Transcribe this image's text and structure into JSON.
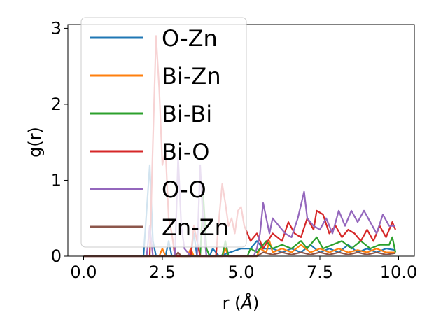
{
  "chart_data": {
    "type": "line",
    "title": "",
    "xlabel_prefix": "r (",
    "xlabel_unit": "Å",
    "xlabel_suffix": ")",
    "ylabel": "g(r)",
    "xlim": [
      -0.5,
      10.5
    ],
    "ylim": [
      0,
      3.05
    ],
    "xticks": [
      0.0,
      2.5,
      5.0,
      7.5,
      10.0
    ],
    "xtick_labels": [
      "0.0",
      "2.5",
      "5.0",
      "7.5",
      "10.0"
    ],
    "yticks": [
      0,
      1,
      2,
      3
    ],
    "ytick_labels": [
      "0",
      "1",
      "2",
      "3"
    ],
    "grid": false,
    "legend_position": "upper-left",
    "series": [
      {
        "name": "O-Zn",
        "color": "#1f77b4",
        "points": [
          [
            0,
            0
          ],
          [
            1.9,
            0
          ],
          [
            2.0,
            0.6
          ],
          [
            2.1,
            1.2
          ],
          [
            2.2,
            0.2
          ],
          [
            2.3,
            0
          ],
          [
            2.6,
            0
          ],
          [
            2.7,
            0.2
          ],
          [
            2.8,
            0
          ],
          [
            3.4,
            0
          ],
          [
            3.5,
            0.3
          ],
          [
            3.6,
            0
          ],
          [
            4.0,
            0
          ],
          [
            4.1,
            0.1
          ],
          [
            4.3,
            0
          ],
          [
            5.0,
            0.1
          ],
          [
            5.3,
            0.1
          ],
          [
            5.5,
            0.2
          ],
          [
            5.7,
            0.1
          ],
          [
            6.0,
            0.1
          ],
          [
            6.3,
            0.05
          ],
          [
            6.6,
            0.1
          ],
          [
            6.9,
            0.05
          ],
          [
            7.2,
            0.15
          ],
          [
            7.5,
            0.05
          ],
          [
            7.8,
            0.1
          ],
          [
            8.1,
            0.05
          ],
          [
            8.4,
            0.15
          ],
          [
            8.7,
            0.05
          ],
          [
            9.0,
            0.1
          ],
          [
            9.3,
            0.05
          ],
          [
            9.6,
            0.1
          ],
          [
            9.9,
            0.08
          ]
        ]
      },
      {
        "name": "Bi-Zn",
        "color": "#ff7f0e",
        "points": [
          [
            0,
            0
          ],
          [
            2.4,
            0
          ],
          [
            2.5,
            0.1
          ],
          [
            2.6,
            0
          ],
          [
            3.3,
            0
          ],
          [
            3.4,
            0.1
          ],
          [
            3.5,
            0
          ],
          [
            4.4,
            0
          ],
          [
            4.5,
            0.1
          ],
          [
            4.6,
            0
          ],
          [
            5.5,
            0
          ],
          [
            5.6,
            0.1
          ],
          [
            5.8,
            0.05
          ],
          [
            5.9,
            0.2
          ],
          [
            6.0,
            0.05
          ],
          [
            6.3,
            0.1
          ],
          [
            6.6,
            0.05
          ],
          [
            6.9,
            0.15
          ],
          [
            7.2,
            0.05
          ],
          [
            7.5,
            0.1
          ],
          [
            7.8,
            0.05
          ],
          [
            8.1,
            0.1
          ],
          [
            8.4,
            0.05
          ],
          [
            8.7,
            0.08
          ],
          [
            9.0,
            0.05
          ],
          [
            9.3,
            0.1
          ],
          [
            9.6,
            0.05
          ],
          [
            9.9,
            0.05
          ]
        ]
      },
      {
        "name": "Bi-Bi",
        "color": "#2ca02c",
        "points": [
          [
            0,
            0
          ],
          [
            3.7,
            0
          ],
          [
            3.8,
            0.8
          ],
          [
            3.9,
            0.1
          ],
          [
            4.0,
            0
          ],
          [
            4.4,
            0
          ],
          [
            4.5,
            0.2
          ],
          [
            4.6,
            0
          ],
          [
            5.2,
            0
          ],
          [
            5.3,
            0.1
          ],
          [
            5.5,
            0.05
          ],
          [
            5.8,
            0.2
          ],
          [
            6.0,
            0.1
          ],
          [
            6.3,
            0.15
          ],
          [
            6.6,
            0.1
          ],
          [
            6.9,
            0.2
          ],
          [
            7.1,
            0.1
          ],
          [
            7.4,
            0.25
          ],
          [
            7.6,
            0.1
          ],
          [
            7.9,
            0.15
          ],
          [
            8.2,
            0.2
          ],
          [
            8.5,
            0.1
          ],
          [
            8.8,
            0.2
          ],
          [
            9.1,
            0.1
          ],
          [
            9.4,
            0.15
          ],
          [
            9.7,
            0.15
          ],
          [
            9.8,
            0.25
          ],
          [
            9.9,
            0.05
          ]
        ]
      },
      {
        "name": "Bi-O",
        "color": "#d62728",
        "points": [
          [
            0,
            0
          ],
          [
            2.1,
            0
          ],
          [
            2.2,
            1.5
          ],
          [
            2.3,
            2.9
          ],
          [
            2.4,
            2.2
          ],
          [
            2.5,
            1.2
          ],
          [
            2.6,
            1.4
          ],
          [
            2.7,
            0.5
          ],
          [
            2.8,
            0.3
          ],
          [
            2.9,
            0
          ],
          [
            3.4,
            0
          ],
          [
            3.5,
            0.4
          ],
          [
            3.6,
            0.2
          ],
          [
            3.7,
            0
          ],
          [
            4.2,
            0
          ],
          [
            4.3,
            0.5
          ],
          [
            4.4,
            0.95
          ],
          [
            4.5,
            0.7
          ],
          [
            4.6,
            0.4
          ],
          [
            4.7,
            0.5
          ],
          [
            4.8,
            0.3
          ],
          [
            4.9,
            0.6
          ],
          [
            5.0,
            0.65
          ],
          [
            5.1,
            0.4
          ],
          [
            5.3,
            0.2
          ],
          [
            5.5,
            0.3
          ],
          [
            5.7,
            0.1
          ],
          [
            6.0,
            0.3
          ],
          [
            6.3,
            0.2
          ],
          [
            6.5,
            0.45
          ],
          [
            6.7,
            0.3
          ],
          [
            6.9,
            0.25
          ],
          [
            7.1,
            0.5
          ],
          [
            7.3,
            0.35
          ],
          [
            7.4,
            0.6
          ],
          [
            7.6,
            0.55
          ],
          [
            7.8,
            0.3
          ],
          [
            8.0,
            0.4
          ],
          [
            8.2,
            0.25
          ],
          [
            8.4,
            0.35
          ],
          [
            8.6,
            0.3
          ],
          [
            8.8,
            0.2
          ],
          [
            9.0,
            0.35
          ],
          [
            9.2,
            0.2
          ],
          [
            9.4,
            0.4
          ],
          [
            9.6,
            0.25
          ],
          [
            9.8,
            0.45
          ],
          [
            9.9,
            0.35
          ]
        ]
      },
      {
        "name": "O-O",
        "color": "#9467bd",
        "points": [
          [
            0,
            0
          ],
          [
            2.0,
            0
          ],
          [
            2.1,
            0.4
          ],
          [
            2.2,
            0
          ],
          [
            2.9,
            0
          ],
          [
            3.0,
            1.3
          ],
          [
            3.1,
            0.4
          ],
          [
            3.2,
            0.1
          ],
          [
            3.4,
            0
          ],
          [
            3.6,
            0
          ],
          [
            3.7,
            1.2
          ],
          [
            3.8,
            0.4
          ],
          [
            3.9,
            0
          ],
          [
            5.4,
            0
          ],
          [
            5.5,
            0.1
          ],
          [
            5.6,
            0.3
          ],
          [
            5.7,
            0.7
          ],
          [
            5.8,
            0.5
          ],
          [
            5.9,
            0.3
          ],
          [
            6.0,
            0.5
          ],
          [
            6.2,
            0.4
          ],
          [
            6.4,
            0.3
          ],
          [
            6.6,
            0.25
          ],
          [
            6.8,
            0.5
          ],
          [
            7.0,
            0.85
          ],
          [
            7.1,
            0.5
          ],
          [
            7.3,
            0.4
          ],
          [
            7.5,
            0.35
          ],
          [
            7.7,
            0.5
          ],
          [
            7.9,
            0.3
          ],
          [
            8.1,
            0.6
          ],
          [
            8.3,
            0.4
          ],
          [
            8.5,
            0.6
          ],
          [
            8.7,
            0.45
          ],
          [
            8.9,
            0.6
          ],
          [
            9.1,
            0.45
          ],
          [
            9.3,
            0.3
          ],
          [
            9.5,
            0.55
          ],
          [
            9.7,
            0.4
          ],
          [
            9.9,
            0.4
          ]
        ]
      },
      {
        "name": "Zn-Zn",
        "color": "#8c564b",
        "points": [
          [
            0,
            0
          ],
          [
            2.9,
            0
          ],
          [
            3.0,
            0.05
          ],
          [
            3.1,
            0
          ],
          [
            5.5,
            0
          ],
          [
            5.7,
            0.05
          ],
          [
            6.0,
            0.02
          ],
          [
            6.3,
            0.05
          ],
          [
            6.6,
            0.02
          ],
          [
            6.9,
            0.05
          ],
          [
            7.2,
            0.02
          ],
          [
            7.5,
            0.05
          ],
          [
            7.8,
            0.02
          ],
          [
            8.1,
            0.05
          ],
          [
            8.4,
            0.02
          ],
          [
            8.7,
            0.05
          ],
          [
            9.0,
            0.02
          ],
          [
            9.3,
            0.05
          ],
          [
            9.6,
            0.02
          ],
          [
            9.9,
            0.04
          ]
        ]
      }
    ]
  }
}
